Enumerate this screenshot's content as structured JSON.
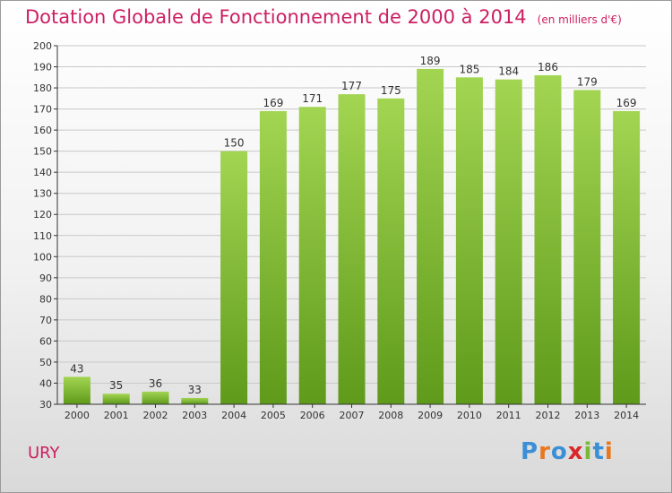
{
  "header": {
    "title": "Dotation Globale de Fonctionnement de 2000 à 2014",
    "unit_note": "(en milliers d'€)"
  },
  "footer": {
    "commune": "URY",
    "logo_text": "Proxiti"
  },
  "colors": {
    "title": "#cc1f61",
    "bar_light": "#a2d552",
    "bar_dark": "#5f9a1a",
    "axis": "#333333",
    "gridline": "#c8c8c8"
  },
  "chart_data": {
    "type": "bar",
    "title": "Dotation Globale de Fonctionnement de 2000 à 2014",
    "xlabel": "",
    "ylabel": "",
    "categories": [
      "2000",
      "2001",
      "2002",
      "2003",
      "2004",
      "2005",
      "2006",
      "2007",
      "2008",
      "2009",
      "2010",
      "2011",
      "2012",
      "2013",
      "2014"
    ],
    "values": [
      43,
      35,
      36,
      33,
      150,
      169,
      171,
      177,
      175,
      189,
      185,
      184,
      186,
      179,
      169
    ],
    "ylim": [
      30,
      200
    ],
    "yticks": [
      30,
      40,
      50,
      60,
      70,
      80,
      90,
      100,
      110,
      120,
      130,
      140,
      150,
      160,
      170,
      180,
      190,
      200
    ],
    "grid": true
  }
}
